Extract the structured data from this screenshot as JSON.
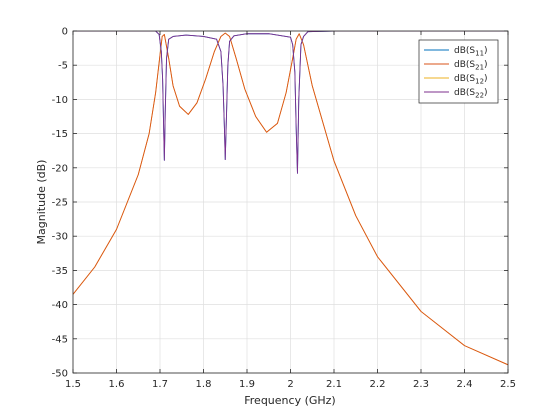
{
  "chart_data": {
    "type": "line",
    "title": "",
    "xlabel": "Frequency (GHz)",
    "ylabel": "Magnitude (dB)",
    "xlim": [
      1.5,
      2.5
    ],
    "ylim": [
      -50,
      0
    ],
    "xticks": [
      "1.5",
      "1.6",
      "1.7",
      "1.8",
      "1.9",
      "2",
      "2.1",
      "2.2",
      "2.3",
      "2.4",
      "2.5"
    ],
    "yticks": [
      "0",
      "-5",
      "-10",
      "-15",
      "-20",
      "-25",
      "-30",
      "-35",
      "-40",
      "-45",
      "-50"
    ],
    "grid": true,
    "legend_position": "top-right",
    "series": [
      {
        "name": "dB(S11)",
        "label_base": "dB(S",
        "label_sub": "11",
        "label_end": ")",
        "color": "#0072bd",
        "x": [
          1.5,
          1.6,
          1.69,
          1.698,
          1.703,
          1.706,
          1.708,
          1.71,
          1.712,
          1.715,
          1.72,
          1.73,
          1.76,
          1.8,
          1.83,
          1.84,
          1.845,
          1.848,
          1.85,
          1.853,
          1.856,
          1.86,
          1.87,
          1.9,
          1.95,
          2.0,
          2.005,
          2.01,
          2.013,
          2.016,
          2.019,
          2.024,
          2.03,
          2.04,
          2.1,
          2.5
        ],
        "y": [
          0,
          0,
          0,
          -0.5,
          -3,
          -7,
          -13,
          -18.9,
          -12,
          -4,
          -1.2,
          -0.8,
          -0.6,
          -0.8,
          -1.2,
          -3,
          -8,
          -14,
          -18.8,
          -12,
          -5,
          -1.5,
          -0.7,
          -0.4,
          -0.4,
          -0.9,
          -2,
          -6,
          -14,
          -20.8,
          -10,
          -2,
          -0.8,
          -0.1,
          0,
          0
        ]
      },
      {
        "name": "dB(S21)",
        "label_base": "dB(S",
        "label_sub": "21",
        "label_end": ")",
        "color": "#d95319",
        "x": [
          1.5,
          1.55,
          1.6,
          1.65,
          1.675,
          1.69,
          1.7,
          1.705,
          1.71,
          1.72,
          1.73,
          1.745,
          1.765,
          1.785,
          1.805,
          1.825,
          1.84,
          1.85,
          1.86,
          1.875,
          1.895,
          1.92,
          1.945,
          1.97,
          1.99,
          2.005,
          2.013,
          2.02,
          2.03,
          2.05,
          2.1,
          2.15,
          2.2,
          2.3,
          2.4,
          2.5
        ],
        "y": [
          -38.5,
          -34.5,
          -29,
          -21,
          -15,
          -9,
          -3.5,
          -0.8,
          -0.5,
          -4,
          -8,
          -11,
          -12.2,
          -10.5,
          -7,
          -3,
          -0.8,
          -0.3,
          -0.8,
          -4,
          -8.5,
          -12.5,
          -14.8,
          -13.5,
          -9,
          -4,
          -1.2,
          -0.4,
          -2,
          -8,
          -19,
          -27,
          -33,
          -41,
          -46,
          -48.8
        ]
      },
      {
        "name": "dB(S12)",
        "label_base": "dB(S",
        "label_sub": "12",
        "label_end": ")",
        "color": "#edb120",
        "x": [
          1.5,
          1.55,
          1.6,
          1.65,
          1.675,
          1.69,
          1.7,
          1.705,
          1.71,
          1.72,
          1.73,
          1.745,
          1.765,
          1.785,
          1.805,
          1.825,
          1.84,
          1.85,
          1.86,
          1.875,
          1.895,
          1.92,
          1.945,
          1.97,
          1.99,
          2.005,
          2.013,
          2.02,
          2.03,
          2.05,
          2.1,
          2.15,
          2.2,
          2.3,
          2.4,
          2.5
        ],
        "y": [
          -38.5,
          -34.5,
          -29,
          -21,
          -15,
          -9,
          -3.5,
          -0.8,
          -0.5,
          -4,
          -8,
          -11,
          -12.2,
          -10.5,
          -7,
          -3,
          -0.8,
          -0.3,
          -0.8,
          -4,
          -8.5,
          -12.5,
          -14.8,
          -13.5,
          -9,
          -4,
          -1.2,
          -0.4,
          -2,
          -8,
          -19,
          -27,
          -33,
          -41,
          -46,
          -48.8
        ]
      },
      {
        "name": "dB(S22)",
        "label_base": "dB(S",
        "label_sub": "22",
        "label_end": ")",
        "color": "#7e2f8e",
        "x": [
          1.5,
          1.6,
          1.69,
          1.698,
          1.703,
          1.706,
          1.708,
          1.71,
          1.712,
          1.715,
          1.72,
          1.73,
          1.76,
          1.8,
          1.83,
          1.84,
          1.845,
          1.848,
          1.85,
          1.853,
          1.856,
          1.86,
          1.87,
          1.9,
          1.95,
          2.0,
          2.005,
          2.01,
          2.013,
          2.016,
          2.019,
          2.024,
          2.03,
          2.04,
          2.1,
          2.5
        ],
        "y": [
          0,
          0,
          0,
          -0.5,
          -3,
          -7,
          -13,
          -18.9,
          -12,
          -4,
          -1.2,
          -0.8,
          -0.6,
          -0.8,
          -1.2,
          -3,
          -8,
          -14,
          -18.8,
          -12,
          -5,
          -1.5,
          -0.7,
          -0.4,
          -0.4,
          -0.9,
          -2,
          -6,
          -14,
          -20.8,
          -10,
          -2,
          -0.8,
          -0.1,
          0,
          0
        ]
      }
    ]
  }
}
